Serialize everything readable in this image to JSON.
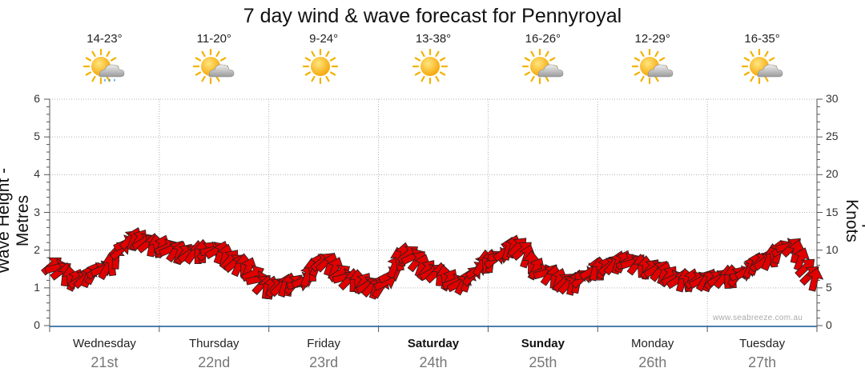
{
  "title": "7 day wind & wave forecast for Pennyroyal",
  "watermark": "www.seabreeze.com.au",
  "days": [
    {
      "name": "Wednesday",
      "date": "21st",
      "temp": "14-23°",
      "icon": "sun-cloud-rain-icon",
      "bold": false
    },
    {
      "name": "Thursday",
      "date": "22nd",
      "temp": "11-20°",
      "icon": "sun-cloud-icon",
      "bold": false
    },
    {
      "name": "Friday",
      "date": "23rd",
      "temp": "9-24°",
      "icon": "sun-icon",
      "bold": false
    },
    {
      "name": "Saturday",
      "date": "24th",
      "temp": "13-38°",
      "icon": "sun-icon",
      "bold": true
    },
    {
      "name": "Sunday",
      "date": "25th",
      "temp": "16-26°",
      "icon": "sun-cloud-icon",
      "bold": true
    },
    {
      "name": "Monday",
      "date": "26th",
      "temp": "12-29°",
      "icon": "sun-cloud-icon",
      "bold": false
    },
    {
      "name": "Tuesday",
      "date": "27th",
      "temp": "16-35°",
      "icon": "sun-cloud-icon",
      "bold": false
    }
  ],
  "chart_data": {
    "type": "line",
    "title": "7 day wind & wave forecast for Pennyroyal",
    "ylabel_left": "Wave Height - Metres",
    "ylabel_right": "Wind Speed - Knots",
    "ylim_left": [
      0,
      6
    ],
    "ylim_right": [
      0,
      30
    ],
    "yticks_left": [
      "0",
      "1",
      "2",
      "3",
      "4",
      "5",
      "6"
    ],
    "yticks_right": [
      "0",
      "5",
      "10",
      "15",
      "20",
      "25",
      "30"
    ],
    "grid": true,
    "x_unit": "days from start of Wednesday 21st",
    "wind_speed_knots": {
      "x": [
        0,
        0.25,
        0.5,
        0.75,
        1,
        1.25,
        1.5,
        1.75,
        2,
        2.25,
        2.5,
        2.75,
        3,
        3.25,
        3.5,
        3.75,
        4,
        4.25,
        4.5,
        4.75,
        5,
        5.25,
        5.5,
        5.75,
        6,
        6.25,
        6.5,
        6.75,
        7
      ],
      "y": [
        8,
        6,
        7.5,
        11.5,
        10.5,
        9.5,
        10,
        8,
        5,
        5.5,
        8.5,
        6,
        5,
        9.5,
        7,
        5.5,
        8.5,
        10.5,
        7,
        5.5,
        7.5,
        8.5,
        7.5,
        6,
        6,
        6.5,
        8.5,
        10.5,
        6
      ]
    },
    "wind_strong_threshold_knots": 12,
    "wind_colors": {
      "normal": "#e00000",
      "strong": "#f4f000"
    }
  },
  "colors": {
    "grid": "#b0b0b0",
    "axis": "#555555",
    "baseline": "#4a7fb0",
    "arrow_outline": "#222222"
  }
}
